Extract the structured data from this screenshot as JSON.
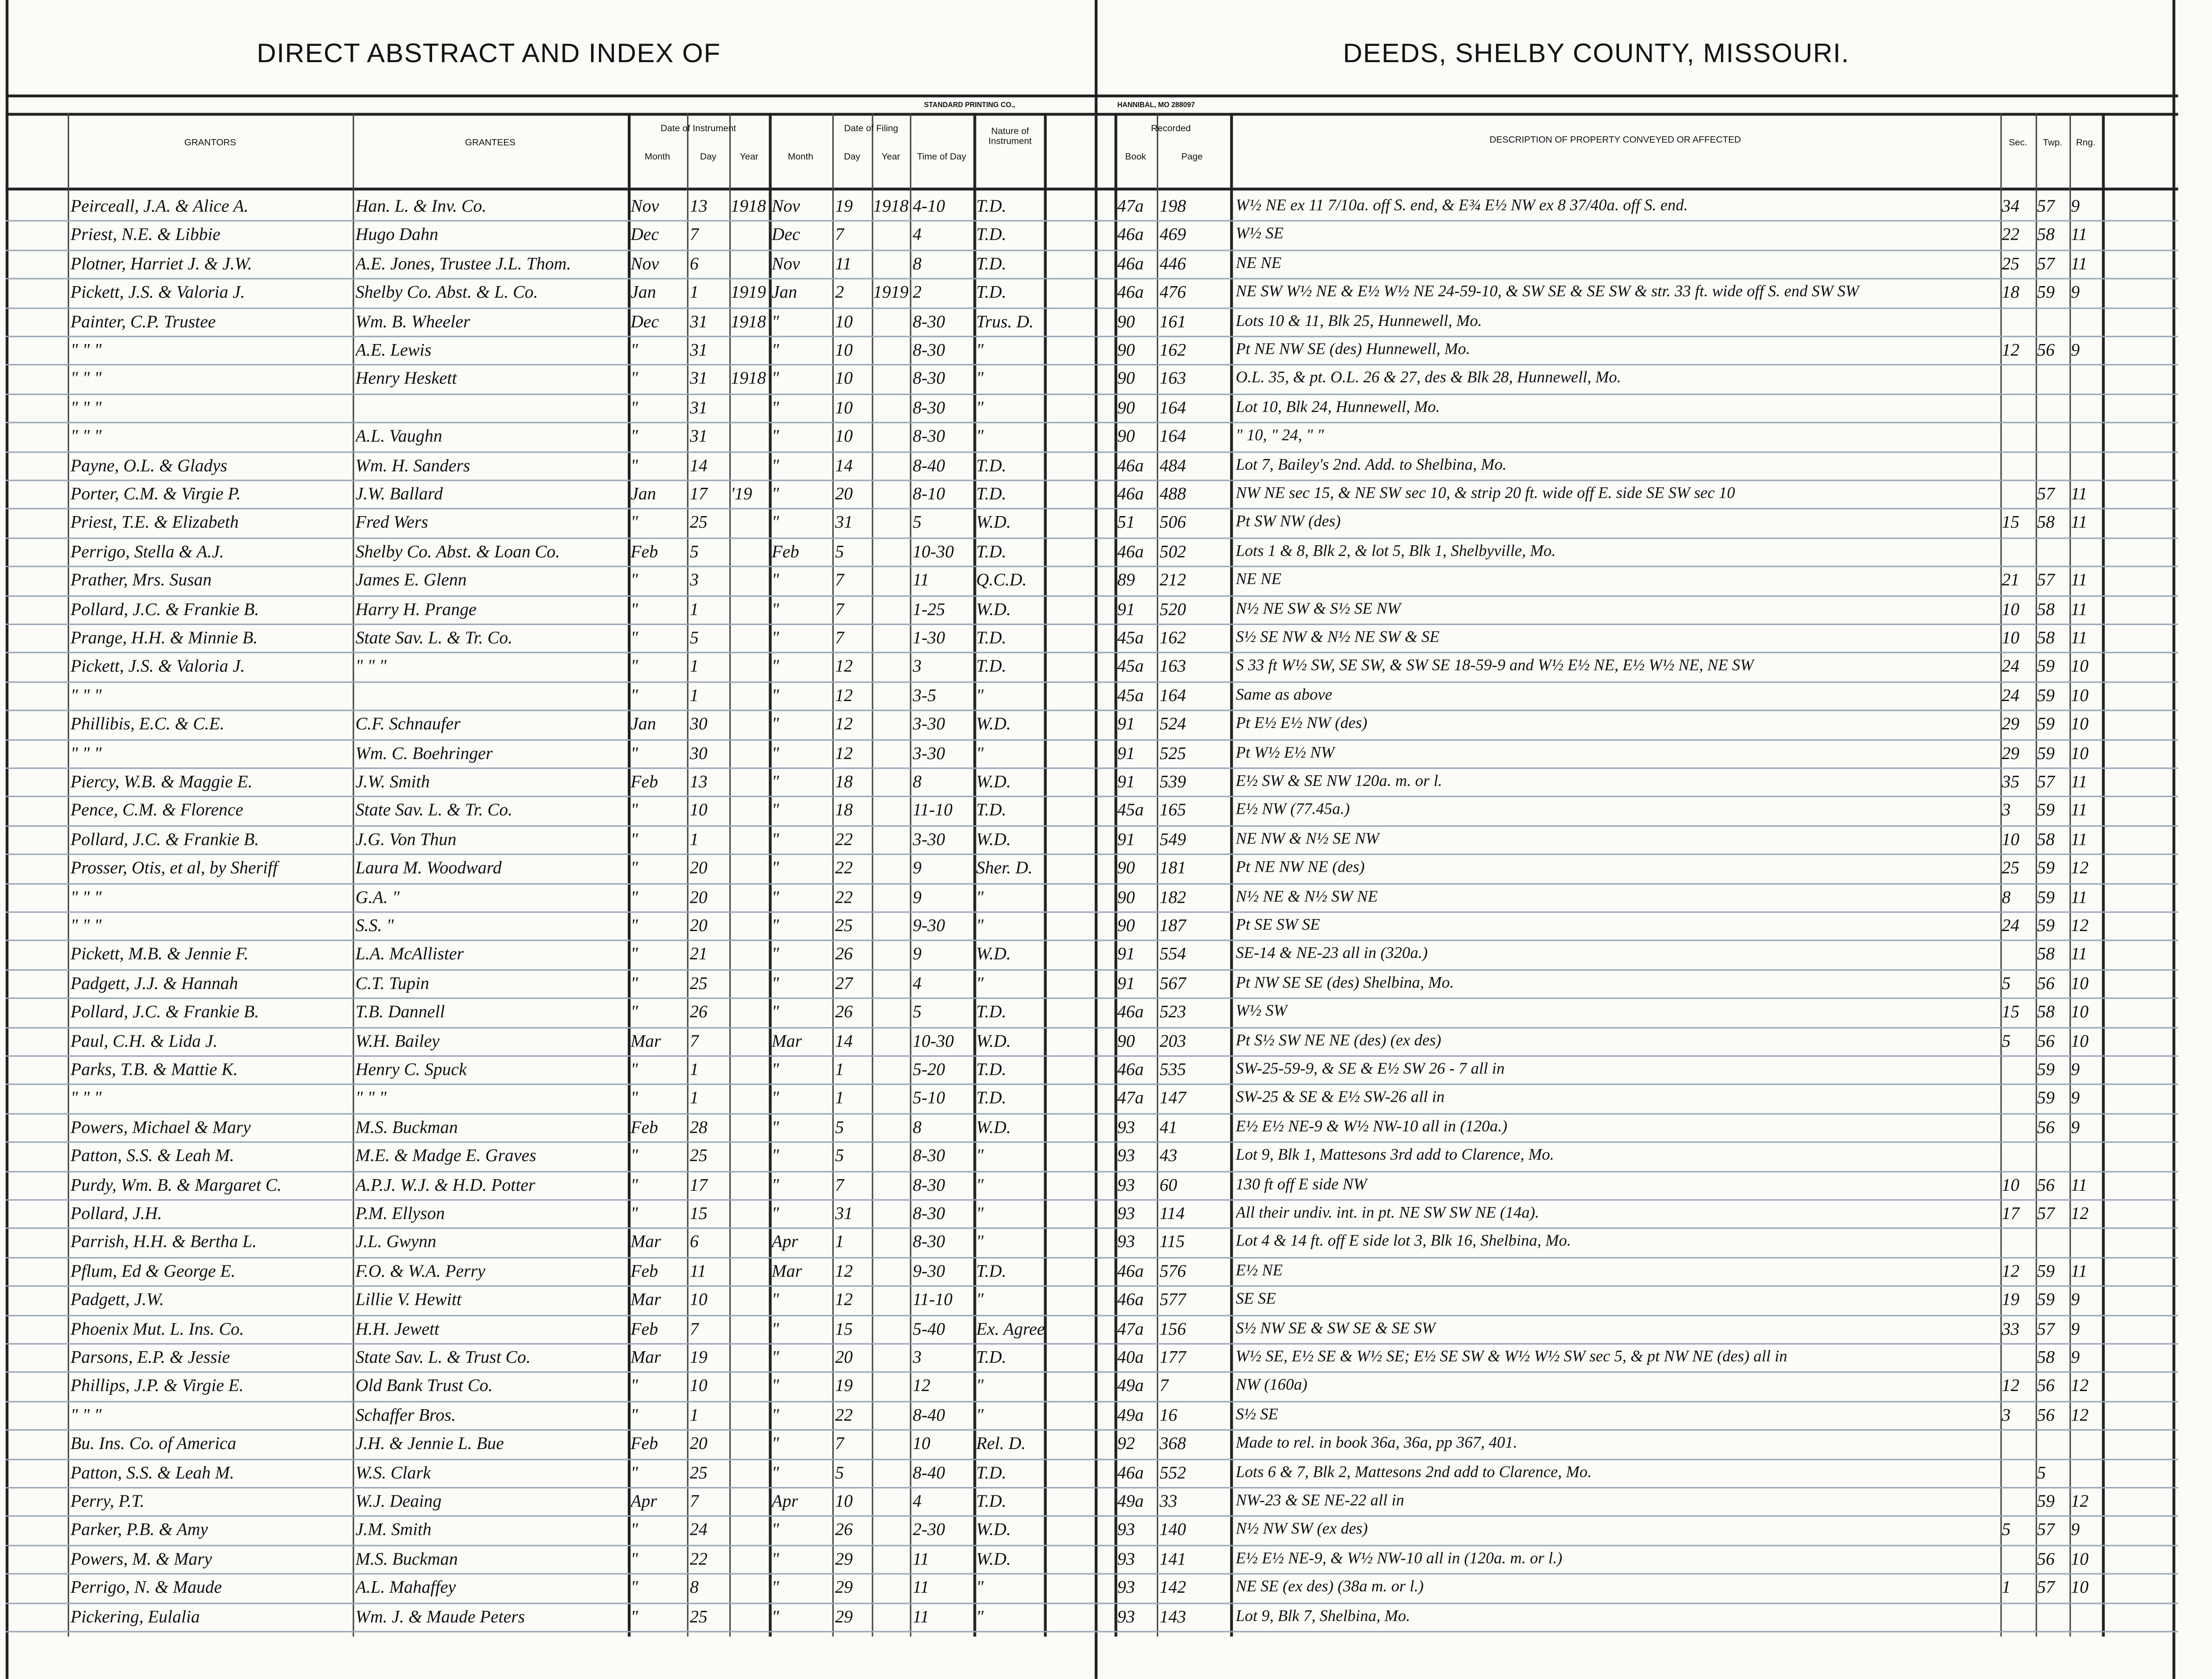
{
  "header": {
    "left_title": "DIRECT ABSTRACT AND INDEX OF",
    "right_title": "DEEDS, SHELBY COUNTY, MISSOURI.",
    "printer_left": "STANDARD PRINTING CO.,",
    "printer_right": "HANNIBAL, MO 288097"
  },
  "columns": {
    "grantors": "GRANTORS",
    "grantees": "GRANTEES",
    "date_of_instrument": "Date of Instrument",
    "date_of_filing": "Date of Filing",
    "month": "Month",
    "day": "Day",
    "year": "Year",
    "time_of_day": "Time of Day",
    "nature": "Nature of Instrument",
    "recorded": "Recorded",
    "book": "Book",
    "page": "Page",
    "description": "DESCRIPTION OF PROPERTY CONVEYED OR AFFECTED",
    "sec": "Sec.",
    "twp": "Twp.",
    "rng": "Rng."
  },
  "rows": [
    [
      "Peirceall, J.A. & Alice A.",
      "Han. L. & Inv. Co.",
      "Nov",
      "13",
      "1918",
      "Nov",
      "19",
      "1918",
      "4-10",
      "T.D.",
      "47a",
      "198",
      "W½ NE ex 11 7/10a. off S. end, & E¾ E½ NW ex 8 37/40a. off S. end.",
      "34",
      "57",
      "9"
    ],
    [
      "Priest, N.E. & Libbie",
      "Hugo Dahn",
      "Dec",
      "7",
      "",
      "Dec",
      "7",
      "",
      "4",
      "T.D.",
      "46a",
      "469",
      "W½ SE",
      "22",
      "58",
      "11"
    ],
    [
      "Plotner, Harriet J. & J.W.",
      "A.E. Jones, Trustee J.L. Thom.",
      "Nov",
      "6",
      "",
      "Nov",
      "11",
      "",
      "8",
      "T.D.",
      "46a",
      "446",
      "NE NE",
      "25",
      "57",
      "11"
    ],
    [
      "Pickett, J.S. & Valoria J.",
      "Shelby Co. Abst. & L. Co.",
      "Jan",
      "1",
      "1919",
      "Jan",
      "2",
      "1919",
      "2",
      "T.D.",
      "46a",
      "476",
      "NE SW W½ NE & E½ W½ NE 24-59-10, & SW SE & SE SW & str. 33 ft. wide off S. end SW SW",
      "18",
      "59",
      "9"
    ],
    [
      "Painter, C.P. Trustee",
      "Wm. B. Wheeler",
      "Dec",
      "31",
      "1918",
      "\"",
      "10",
      "",
      "8-30",
      "Trus. D.",
      "90",
      "161",
      "Lots 10 & 11, Blk 25, Hunnewell, Mo.",
      "",
      "",
      ""
    ],
    [
      "\"   \"   \"",
      "A.E. Lewis",
      "\"",
      "31",
      "",
      "\"",
      "10",
      "",
      "8-30",
      "\"",
      "90",
      "162",
      "Pt NE NW SE (des) Hunnewell, Mo.",
      "12",
      "56",
      "9"
    ],
    [
      "\"   \"   \"",
      "Henry Heskett",
      "\"",
      "31",
      "1918",
      "\"",
      "10",
      "",
      "8-30",
      "\"",
      "90",
      "163",
      "O.L. 35, & pt. O.L. 26 & 27, des & Blk 28, Hunnewell, Mo.",
      "",
      "",
      ""
    ],
    [
      "\"   \"   \"",
      "",
      "\"",
      "31",
      "",
      "\"",
      "10",
      "",
      "8-30",
      "\"",
      "90",
      "164",
      "Lot 10, Blk 24, Hunnewell, Mo.",
      "",
      "",
      ""
    ],
    [
      "\"   \"   \"",
      "A.L. Vaughn",
      "\"",
      "31",
      "",
      "\"",
      "10",
      "",
      "8-30",
      "\"",
      "90",
      "164",
      "\" 10, \" 24, \"   \"",
      "",
      "",
      ""
    ],
    [
      "Payne, O.L. & Gladys",
      "Wm. H. Sanders",
      "\"",
      "14",
      "",
      "\"",
      "14",
      "",
      "8-40",
      "T.D.",
      "46a",
      "484",
      "Lot 7, Bailey's 2nd. Add. to Shelbina, Mo.",
      "",
      "",
      ""
    ],
    [
      "Porter, C.M. & Virgie P.",
      "J.W. Ballard",
      "Jan",
      "17",
      "'19",
      "\"",
      "20",
      "",
      "8-10",
      "T.D.",
      "46a",
      "488",
      "NW NE sec 15, & NE SW sec 10, & strip 20 ft. wide off E. side SE SW sec 10",
      "",
      "57",
      "11"
    ],
    [
      "Priest, T.E. & Elizabeth",
      "Fred Wers",
      "\"",
      "25",
      "",
      "\"",
      "31",
      "",
      "5",
      "W.D.",
      "51",
      "506",
      "Pt SW NW (des)",
      "15",
      "58",
      "11"
    ],
    [
      "Perrigo, Stella & A.J.",
      "Shelby Co. Abst. & Loan Co.",
      "Feb",
      "5",
      "",
      "Feb",
      "5",
      "",
      "10-30",
      "T.D.",
      "46a",
      "502",
      "Lots 1 & 8, Blk 2, & lot 5, Blk 1, Shelbyville, Mo.",
      "",
      "",
      ""
    ],
    [
      "Prather, Mrs. Susan",
      "James E. Glenn",
      "\"",
      "3",
      "",
      "\"",
      "7",
      "",
      "11",
      "Q.C.D.",
      "89",
      "212",
      "NE NE",
      "21",
      "57",
      "11"
    ],
    [
      "Pollard, J.C. & Frankie B.",
      "Harry H. Prange",
      "\"",
      "1",
      "",
      "\"",
      "7",
      "",
      "1-25",
      "W.D.",
      "91",
      "520",
      "N½ NE SW & S½ SE NW",
      "10",
      "58",
      "11"
    ],
    [
      "Prange, H.H. & Minnie B.",
      "State Sav. L. & Tr. Co.",
      "\"",
      "5",
      "",
      "\"",
      "7",
      "",
      "1-30",
      "T.D.",
      "45a",
      "162",
      "S½ SE NW & N½ NE SW & SE",
      "10",
      "58",
      "11"
    ],
    [
      "Pickett, J.S. & Valoria J.",
      "\"   \"   \"",
      "\"",
      "1",
      "",
      "\"",
      "12",
      "",
      "3",
      "T.D.",
      "45a",
      "163",
      "S 33 ft W½ SW, SE SW, & SW SE 18-59-9 and W½ E½ NE, E½ W½ NE, NE SW",
      "24",
      "59",
      "10"
    ],
    [
      "\"   \"   \"",
      "",
      "\"",
      "1",
      "",
      "\"",
      "12",
      "",
      "3-5",
      "\"",
      "45a",
      "164",
      "Same as above",
      "24",
      "59",
      "10"
    ],
    [
      "Phillibis, E.C. & C.E.",
      "C.F. Schnaufer",
      "Jan",
      "30",
      "",
      "\"",
      "12",
      "",
      "3-30",
      "W.D.",
      "91",
      "524",
      "Pt E½ E½ NW (des)",
      "29",
      "59",
      "10"
    ],
    [
      "\"   \"   \"",
      "Wm. C. Boehringer",
      "\"",
      "30",
      "",
      "\"",
      "12",
      "",
      "3-30",
      "\"",
      "91",
      "525",
      "Pt W½ E½ NW",
      "29",
      "59",
      "10"
    ],
    [
      "Piercy, W.B. & Maggie E.",
      "J.W. Smith",
      "Feb",
      "13",
      "",
      "\"",
      "18",
      "",
      "8",
      "W.D.",
      "91",
      "539",
      "E½ SW & SE NW     120a. m. or l.",
      "35",
      "57",
      "11"
    ],
    [
      "Pence, C.M. & Florence",
      "State Sav. L. & Tr. Co.",
      "\"",
      "10",
      "",
      "\"",
      "18",
      "",
      "11-10",
      "T.D.",
      "45a",
      "165",
      "E½ NW    (77.45a.)",
      "3",
      "59",
      "11"
    ],
    [
      "Pollard, J.C. & Frankie B.",
      "J.G. Von Thun",
      "\"",
      "1",
      "",
      "\"",
      "22",
      "",
      "3-30",
      "W.D.",
      "91",
      "549",
      "NE NW & N½ SE NW",
      "10",
      "58",
      "11"
    ],
    [
      "Prosser, Otis, et al, by Sheriff",
      "Laura M. Woodward",
      "\"",
      "20",
      "",
      "\"",
      "22",
      "",
      "9",
      "Sher. D.",
      "90",
      "181",
      "Pt NE NW NE (des)",
      "25",
      "59",
      "12"
    ],
    [
      "\"   \"   \"",
      "G.A.   \"",
      "\"",
      "20",
      "",
      "\"",
      "22",
      "",
      "9",
      "\"",
      "90",
      "182",
      "N½ NE & N½ SW NE",
      "8",
      "59",
      "11"
    ],
    [
      "\"   \"   \"",
      "S.S.   \"",
      "\"",
      "20",
      "",
      "\"",
      "25",
      "",
      "9-30",
      "\"",
      "90",
      "187",
      "Pt SE SW SE",
      "24",
      "59",
      "12"
    ],
    [
      "Pickett, M.B. & Jennie F.",
      "L.A. McAllister",
      "\"",
      "21",
      "",
      "\"",
      "26",
      "",
      "9",
      "W.D.",
      "91",
      "554",
      "SE-14 & NE-23 all in     (320a.)",
      "",
      "58",
      "11"
    ],
    [
      "Padgett, J.J. & Hannah",
      "C.T. Tupin",
      "\"",
      "25",
      "",
      "\"",
      "27",
      "",
      "4",
      "\"",
      "91",
      "567",
      "Pt NW SE SE (des) Shelbina, Mo.",
      "5",
      "56",
      "10"
    ],
    [
      "Pollard, J.C. & Frankie B.",
      "T.B. Dannell",
      "\"",
      "26",
      "",
      "\"",
      "26",
      "",
      "5",
      "T.D.",
      "46a",
      "523",
      "W½ SW",
      "15",
      "58",
      "10"
    ],
    [
      "Paul, C.H. & Lida J.",
      "W.H. Bailey",
      "Mar",
      "7",
      "",
      "Mar",
      "14",
      "",
      "10-30",
      "W.D.",
      "90",
      "203",
      "Pt S½ SW NE NE (des)   (ex des)",
      "5",
      "56",
      "10"
    ],
    [
      "Parks, T.B. & Mattie K.",
      "Henry C. Spuck",
      "\"",
      "1",
      "",
      "\"",
      "1",
      "",
      "5-20",
      "T.D.",
      "46a",
      "535",
      "SW-25-59-9, & SE & E½ SW 26 - 7 all in",
      "",
      "59",
      "9"
    ],
    [
      "\"   \"   \"",
      "\"   \"   \"",
      "\"",
      "1",
      "",
      "\"",
      "1",
      "",
      "5-10",
      "T.D.",
      "47a",
      "147",
      "SW-25 & SE & E½ SW-26 all in",
      "",
      "59",
      "9"
    ],
    [
      "Powers, Michael & Mary",
      "M.S. Buckman",
      "Feb",
      "28",
      "",
      "\"",
      "5",
      "",
      "8",
      "W.D.",
      "93",
      "41",
      "E½ E½ NE-9 & W½ NW-10 all in  (120a.)",
      "",
      "56",
      "9"
    ],
    [
      "Patton, S.S. & Leah M.",
      "M.E. & Madge E. Graves",
      "\"",
      "25",
      "",
      "\"",
      "5",
      "",
      "8-30",
      "\"",
      "93",
      "43",
      "Lot 9, Blk 1, Mattesons 3rd add to Clarence, Mo.",
      "",
      "",
      ""
    ],
    [
      "Purdy, Wm. B. & Margaret C.",
      "A.P.J. W.J. & H.D. Potter",
      "\"",
      "17",
      "",
      "\"",
      "7",
      "",
      "8-30",
      "\"",
      "93",
      "60",
      "130 ft off E side NW",
      "10",
      "56",
      "11"
    ],
    [
      "Pollard, J.H.",
      "P.M. Ellyson",
      "\"",
      "15",
      "",
      "\"",
      "31",
      "",
      "8-30",
      "\"",
      "93",
      "114",
      "All their undiv. int. in pt. NE SW SW NE   (14a).",
      "17",
      "57",
      "12"
    ],
    [
      "Parrish, H.H. & Bertha L.",
      "J.L. Gwynn",
      "Mar",
      "6",
      "",
      "Apr",
      "1",
      "",
      "8-30",
      "\"",
      "93",
      "115",
      "Lot 4 & 14 ft. off E side lot 3, Blk 16, Shelbina, Mo.",
      "",
      "",
      ""
    ],
    [
      "Pflum, Ed & George E.",
      "F.O. & W.A. Perry",
      "Feb",
      "11",
      "",
      "Mar",
      "12",
      "",
      "9-30",
      "T.D.",
      "46a",
      "576",
      "E½ NE",
      "12",
      "59",
      "11"
    ],
    [
      "Padgett, J.W.",
      "Lillie V. Hewitt",
      "Mar",
      "10",
      "",
      "\"",
      "12",
      "",
      "11-10",
      "\"",
      "46a",
      "577",
      "SE SE",
      "19",
      "59",
      "9"
    ],
    [
      "Phoenix Mut. L. Ins. Co.",
      "H.H. Jewett",
      "Feb",
      "7",
      "",
      "\"",
      "15",
      "",
      "5-40",
      "Ex. Agree",
      "47a",
      "156",
      "S½ NW SE & SW SE & SE SW",
      "33",
      "57",
      "9"
    ],
    [
      "Parsons, E.P. & Jessie",
      "State Sav. L. & Trust Co.",
      "Mar",
      "19",
      "",
      "\"",
      "20",
      "",
      "3",
      "T.D.",
      "40a",
      "177",
      "W½ SE, E½ SE & W½ SE; E½ SE SW & W½ W½ SW sec 5, & pt NW NE (des) all in",
      "",
      "58",
      "9"
    ],
    [
      "Phillips, J.P. & Virgie E.",
      "Old Bank Trust Co.",
      "\"",
      "10",
      "",
      "\"",
      "19",
      "",
      "12",
      "\"",
      "49a",
      "7",
      "NW            (160a)",
      "12",
      "56",
      "12"
    ],
    [
      "\"   \"   \"",
      "Schaffer Bros.",
      "\"",
      "1",
      "",
      "\"",
      "22",
      "",
      "8-40",
      "\"",
      "49a",
      "16",
      "S½ SE",
      "3",
      "56",
      "12"
    ],
    [
      "Bu. Ins. Co. of America",
      "J.H. & Jennie L. Bue",
      "Feb",
      "20",
      "",
      "\"",
      "7",
      "",
      "10",
      "Rel. D.",
      "92",
      "368",
      "Made to rel. in book 36a, 36a, pp 367, 401.",
      "",
      "",
      ""
    ],
    [
      "Patton, S.S. & Leah M.",
      "W.S. Clark",
      "\"",
      "25",
      "",
      "\"",
      "5",
      "",
      "8-40",
      "T.D.",
      "46a",
      "552",
      "Lots 6 & 7, Blk 2, Mattesons 2nd add to Clarence, Mo.",
      "",
      "5",
      ""
    ],
    [
      "Perry, P.T.",
      "W.J. Deaing",
      "Apr",
      "7",
      "",
      "Apr",
      "10",
      "",
      "4",
      "T.D.",
      "49a",
      "33",
      "NW-23 & SE NE-22 all in",
      "",
      "59",
      "12"
    ],
    [
      "Parker, P.B. & Amy",
      "J.M. Smith",
      "\"",
      "24",
      "",
      "\"",
      "26",
      "",
      "2-30",
      "W.D.",
      "93",
      "140",
      "N½ NW SW     (ex des)",
      "5",
      "57",
      "9"
    ],
    [
      "Powers, M. & Mary",
      "M.S. Buckman",
      "\"",
      "22",
      "",
      "\"",
      "29",
      "",
      "11",
      "W.D.",
      "93",
      "141",
      "E½ E½ NE-9, & W½ NW-10 all in     (120a. m. or l.)",
      "",
      "56",
      "10"
    ],
    [
      "Perrigo, N. & Maude",
      "A.L. Mahaffey",
      "\"",
      "8",
      "",
      "\"",
      "29",
      "",
      "11",
      "\"",
      "93",
      "142",
      "NE SE   (ex des)   (38a m. or l.)",
      "1",
      "57",
      "10"
    ],
    [
      "Pickering, Eulalia",
      "Wm. J. & Maude Peters",
      "\"",
      "25",
      "",
      "\"",
      "29",
      "",
      "11",
      "\"",
      "93",
      "143",
      "Lot 9, Blk 7, Shelbina, Mo.",
      "",
      "",
      ""
    ]
  ]
}
